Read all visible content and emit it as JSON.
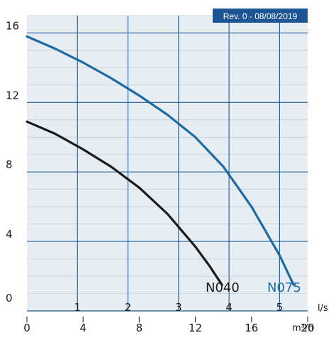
{
  "chart_data": {
    "type": "line",
    "revision": "Rev. 0 - 08/08/2019",
    "xlabel": "m³/h",
    "x_secondary_label": "l/s",
    "xlim": [
      0,
      20
    ],
    "ylim": [
      0,
      17
    ],
    "x_ticks": [
      "0",
      "4",
      "8",
      "12",
      "16",
      "20"
    ],
    "x_secondary_ticks": [
      "1",
      "2",
      "3",
      "4",
      "5"
    ],
    "y_ticks": [
      "0",
      "4",
      "8",
      "12",
      "16"
    ],
    "grid": true,
    "colors": {
      "background": "#e6edf3",
      "grid": "#1f5c99",
      "n040": "#1a1a1a",
      "n075": "#1d6aa5",
      "badge": "#1d5594"
    },
    "series": [
      {
        "name": "N040",
        "color": "#1a1a1a",
        "x": [
          0,
          2,
          4,
          6,
          8,
          10,
          12,
          13,
          13.9
        ],
        "y": [
          10.9,
          10.2,
          9.3,
          8.3,
          7.1,
          5.6,
          3.7,
          2.6,
          1.5
        ]
      },
      {
        "name": "N075",
        "color": "#1d6aa5",
        "x": [
          0,
          2,
          4,
          6,
          8,
          10,
          12,
          14,
          16,
          18,
          19
        ],
        "y": [
          15.8,
          15.1,
          14.3,
          13.4,
          12.4,
          11.3,
          10.0,
          8.3,
          6.0,
          3.2,
          1.5
        ]
      }
    ]
  }
}
